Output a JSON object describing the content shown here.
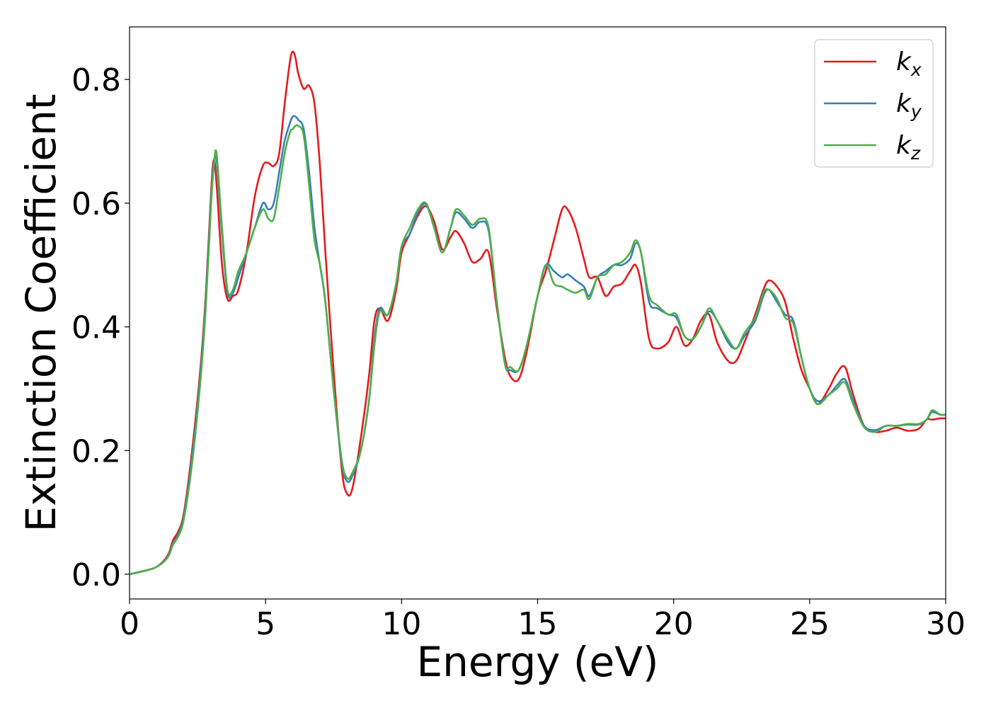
{
  "chart_data": {
    "type": "line",
    "xlabel": "Energy (eV)",
    "ylabel": "Extinction Coefficient",
    "xlim": [
      0,
      30
    ],
    "ylim": [
      -0.04,
      0.885
    ],
    "xticks": [
      0,
      5,
      10,
      15,
      20,
      25,
      30
    ],
    "xtick_labels": [
      "0",
      "5",
      "10",
      "15",
      "20",
      "25",
      "30"
    ],
    "yticks": [
      0.0,
      0.2,
      0.4,
      0.6,
      0.8
    ],
    "ytick_labels": [
      "0.0",
      "0.2",
      "0.4",
      "0.6",
      "0.8"
    ],
    "grid": false,
    "legend_position": "top-right",
    "series": [
      {
        "name": "k",
        "subscript": "x",
        "color": "#e41a1c",
        "x": [
          0,
          0.5,
          1.0,
          1.4,
          1.6,
          1.8,
          2.0,
          2.3,
          2.6,
          2.8,
          3.0,
          3.1,
          3.2,
          3.4,
          3.6,
          3.8,
          4.0,
          4.3,
          4.6,
          4.9,
          5.1,
          5.3,
          5.5,
          5.7,
          5.9,
          6.0,
          6.1,
          6.2,
          6.4,
          6.6,
          6.8,
          7.0,
          7.2,
          7.5,
          7.8,
          8.0,
          8.2,
          8.5,
          8.8,
          9.0,
          9.2,
          9.5,
          9.8,
          10.0,
          10.3,
          10.6,
          10.9,
          11.2,
          11.5,
          11.8,
          12.0,
          12.3,
          12.6,
          12.9,
          13.2,
          13.5,
          13.8,
          14.0,
          14.3,
          14.6,
          15.0,
          15.3,
          15.6,
          15.9,
          16.1,
          16.4,
          16.7,
          16.9,
          17.2,
          17.5,
          17.8,
          18.1,
          18.4,
          18.6,
          18.8,
          19.1,
          19.4,
          19.8,
          20.1,
          20.4,
          20.7,
          21.0,
          21.3,
          21.6,
          22.0,
          22.3,
          22.6,
          23.0,
          23.3,
          23.5,
          23.8,
          24.1,
          24.4,
          24.7,
          25.0,
          25.3,
          25.7,
          26.0,
          26.3,
          26.6,
          27.0,
          27.4,
          27.8,
          28.2,
          28.6,
          29.0,
          29.3,
          29.5,
          29.8,
          30.0
        ],
        "y": [
          0.0,
          0.005,
          0.012,
          0.03,
          0.055,
          0.07,
          0.1,
          0.2,
          0.33,
          0.45,
          0.62,
          0.67,
          0.63,
          0.5,
          0.445,
          0.45,
          0.46,
          0.52,
          0.61,
          0.66,
          0.665,
          0.66,
          0.68,
          0.76,
          0.83,
          0.845,
          0.835,
          0.81,
          0.785,
          0.79,
          0.76,
          0.66,
          0.52,
          0.33,
          0.17,
          0.13,
          0.14,
          0.22,
          0.32,
          0.41,
          0.43,
          0.41,
          0.46,
          0.52,
          0.55,
          0.58,
          0.595,
          0.57,
          0.525,
          0.545,
          0.555,
          0.535,
          0.505,
          0.51,
          0.52,
          0.43,
          0.35,
          0.32,
          0.315,
          0.36,
          0.45,
          0.49,
          0.54,
          0.59,
          0.59,
          0.56,
          0.51,
          0.48,
          0.48,
          0.45,
          0.465,
          0.47,
          0.49,
          0.5,
          0.47,
          0.38,
          0.365,
          0.375,
          0.4,
          0.37,
          0.38,
          0.41,
          0.42,
          0.375,
          0.345,
          0.345,
          0.375,
          0.42,
          0.46,
          0.475,
          0.465,
          0.44,
          0.38,
          0.33,
          0.3,
          0.275,
          0.3,
          0.325,
          0.335,
          0.29,
          0.24,
          0.23,
          0.232,
          0.237,
          0.232,
          0.235,
          0.25,
          0.25,
          0.252,
          0.252
        ]
      },
      {
        "name": "k",
        "subscript": "y",
        "color": "#377eb8",
        "x": [
          0,
          0.5,
          1.0,
          1.4,
          1.6,
          1.8,
          2.0,
          2.3,
          2.6,
          2.8,
          3.0,
          3.1,
          3.2,
          3.4,
          3.6,
          3.8,
          4.0,
          4.3,
          4.6,
          4.9,
          5.1,
          5.3,
          5.5,
          5.7,
          5.9,
          6.0,
          6.1,
          6.2,
          6.4,
          6.6,
          6.8,
          7.0,
          7.2,
          7.5,
          7.8,
          8.0,
          8.2,
          8.5,
          8.8,
          9.0,
          9.2,
          9.5,
          9.8,
          10.0,
          10.3,
          10.6,
          10.9,
          11.2,
          11.5,
          11.8,
          12.0,
          12.3,
          12.6,
          12.9,
          13.2,
          13.5,
          13.8,
          14.0,
          14.3,
          14.6,
          15.0,
          15.3,
          15.6,
          15.9,
          16.1,
          16.4,
          16.7,
          16.9,
          17.2,
          17.5,
          17.8,
          18.1,
          18.4,
          18.6,
          18.8,
          19.1,
          19.4,
          19.8,
          20.1,
          20.4,
          20.7,
          21.0,
          21.3,
          21.6,
          22.0,
          22.3,
          22.6,
          23.0,
          23.3,
          23.5,
          23.8,
          24.1,
          24.4,
          24.7,
          25.0,
          25.3,
          25.7,
          26.0,
          26.3,
          26.6,
          27.0,
          27.4,
          27.8,
          28.2,
          28.6,
          29.0,
          29.3,
          29.5,
          29.8,
          30.0
        ],
        "y": [
          0.0,
          0.005,
          0.012,
          0.028,
          0.05,
          0.065,
          0.095,
          0.19,
          0.32,
          0.44,
          0.61,
          0.665,
          0.67,
          0.55,
          0.455,
          0.455,
          0.48,
          0.52,
          0.56,
          0.6,
          0.59,
          0.6,
          0.65,
          0.7,
          0.73,
          0.74,
          0.74,
          0.735,
          0.72,
          0.65,
          0.56,
          0.5,
          0.44,
          0.3,
          0.18,
          0.15,
          0.16,
          0.2,
          0.28,
          0.38,
          0.43,
          0.42,
          0.47,
          0.53,
          0.55,
          0.585,
          0.598,
          0.56,
          0.52,
          0.56,
          0.585,
          0.575,
          0.56,
          0.57,
          0.555,
          0.44,
          0.34,
          0.33,
          0.33,
          0.37,
          0.45,
          0.5,
          0.49,
          0.48,
          0.485,
          0.475,
          0.465,
          0.45,
          0.48,
          0.49,
          0.5,
          0.5,
          0.51,
          0.535,
          0.52,
          0.44,
          0.43,
          0.42,
          0.415,
          0.385,
          0.38,
          0.4,
          0.425,
          0.41,
          0.375,
          0.365,
          0.385,
          0.41,
          0.45,
          0.46,
          0.44,
          0.42,
          0.41,
          0.35,
          0.3,
          0.28,
          0.29,
          0.305,
          0.315,
          0.28,
          0.24,
          0.233,
          0.24,
          0.24,
          0.242,
          0.242,
          0.25,
          0.262,
          0.258,
          0.258
        ]
      },
      {
        "name": "k",
        "subscript": "z",
        "color": "#4daf4a",
        "x": [
          0,
          0.5,
          1.0,
          1.4,
          1.6,
          1.8,
          2.0,
          2.3,
          2.6,
          2.8,
          3.0,
          3.1,
          3.2,
          3.4,
          3.6,
          3.8,
          4.0,
          4.3,
          4.6,
          4.9,
          5.1,
          5.3,
          5.5,
          5.7,
          5.9,
          6.0,
          6.1,
          6.2,
          6.4,
          6.6,
          6.8,
          7.0,
          7.2,
          7.5,
          7.8,
          8.0,
          8.2,
          8.5,
          8.8,
          9.0,
          9.2,
          9.5,
          9.8,
          10.0,
          10.3,
          10.6,
          10.9,
          11.2,
          11.5,
          11.8,
          12.0,
          12.3,
          12.6,
          12.9,
          13.2,
          13.5,
          13.8,
          14.0,
          14.3,
          14.6,
          15.0,
          15.3,
          15.6,
          15.9,
          16.1,
          16.4,
          16.7,
          16.9,
          17.2,
          17.5,
          17.8,
          18.1,
          18.4,
          18.6,
          18.8,
          19.1,
          19.4,
          19.8,
          20.1,
          20.4,
          20.7,
          21.0,
          21.3,
          21.6,
          22.0,
          22.3,
          22.6,
          23.0,
          23.3,
          23.5,
          23.8,
          24.1,
          24.4,
          24.7,
          25.0,
          25.3,
          25.7,
          26.0,
          26.3,
          26.6,
          27.0,
          27.4,
          27.8,
          28.2,
          28.6,
          29.0,
          29.3,
          29.5,
          29.8,
          30.0
        ],
        "y": [
          0.0,
          0.005,
          0.012,
          0.027,
          0.048,
          0.062,
          0.09,
          0.18,
          0.31,
          0.43,
          0.6,
          0.66,
          0.68,
          0.56,
          0.46,
          0.46,
          0.49,
          0.52,
          0.56,
          0.59,
          0.575,
          0.575,
          0.625,
          0.68,
          0.715,
          0.72,
          0.725,
          0.725,
          0.71,
          0.63,
          0.54,
          0.5,
          0.44,
          0.3,
          0.185,
          0.155,
          0.165,
          0.2,
          0.28,
          0.37,
          0.425,
          0.42,
          0.47,
          0.53,
          0.56,
          0.59,
          0.6,
          0.56,
          0.52,
          0.56,
          0.59,
          0.58,
          0.565,
          0.575,
          0.56,
          0.44,
          0.34,
          0.335,
          0.33,
          0.37,
          0.45,
          0.5,
          0.47,
          0.465,
          0.46,
          0.455,
          0.46,
          0.445,
          0.48,
          0.485,
          0.5,
          0.505,
          0.52,
          0.54,
          0.52,
          0.45,
          0.435,
          0.42,
          0.42,
          0.385,
          0.38,
          0.4,
          0.43,
          0.41,
          0.38,
          0.365,
          0.39,
          0.415,
          0.455,
          0.46,
          0.445,
          0.415,
          0.405,
          0.35,
          0.3,
          0.275,
          0.29,
          0.3,
          0.31,
          0.275,
          0.238,
          0.23,
          0.24,
          0.24,
          0.243,
          0.243,
          0.25,
          0.265,
          0.258,
          0.258
        ]
      }
    ]
  }
}
